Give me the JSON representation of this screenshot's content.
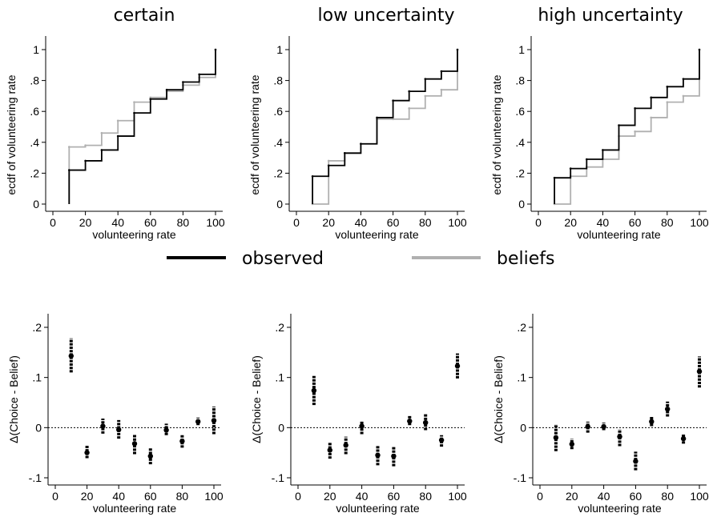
{
  "legend": {
    "items": [
      {
        "label": "observed",
        "color": "#000000"
      },
      {
        "label": "beliefs",
        "color": "#b0b0b0"
      }
    ]
  },
  "chart_data": [
    {
      "type": "line",
      "title": "certain",
      "xlabel": "volunteering rate",
      "ylabel": "ecdf of volunteering rate",
      "xticks": [
        "0",
        "20",
        "40",
        "60",
        "80",
        "100"
      ],
      "yticks": [
        "0",
        ".2",
        ".4",
        ".6",
        ".8",
        "1"
      ],
      "xlim": [
        0,
        100
      ],
      "ylim": [
        0,
        1
      ],
      "step": true,
      "x": [
        10,
        20,
        30,
        40,
        50,
        60,
        70,
        80,
        90,
        100
      ],
      "series": [
        {
          "name": "observed",
          "values": [
            0.22,
            0.28,
            0.35,
            0.44,
            0.59,
            0.68,
            0.74,
            0.79,
            0.84,
            1.0
          ]
        },
        {
          "name": "beliefs",
          "values": [
            0.37,
            0.38,
            0.46,
            0.54,
            0.66,
            0.69,
            0.73,
            0.77,
            0.82,
            1.0
          ]
        }
      ]
    },
    {
      "type": "line",
      "title": "low uncertainty",
      "xlabel": "volunteering rate",
      "ylabel": "ecdf of volunteering rate",
      "xticks": [
        "0",
        "20",
        "40",
        "60",
        "80",
        "100"
      ],
      "yticks": [
        "0",
        ".2",
        ".4",
        ".6",
        ".8",
        "1"
      ],
      "xlim": [
        0,
        100
      ],
      "ylim": [
        0,
        1
      ],
      "step": true,
      "x": [
        10,
        20,
        30,
        40,
        50,
        60,
        70,
        80,
        90,
        100
      ],
      "series": [
        {
          "name": "observed",
          "values": [
            0.18,
            0.25,
            0.33,
            0.39,
            0.56,
            0.67,
            0.73,
            0.81,
            0.86,
            1.0
          ]
        },
        {
          "name": "beliefs",
          "values": [
            0.0,
            0.28,
            0.33,
            0.39,
            0.55,
            0.55,
            0.62,
            0.7,
            0.74,
            1.0
          ]
        }
      ]
    },
    {
      "type": "line",
      "title": "high uncertainty",
      "xlabel": "volunteering rate",
      "ylabel": "ecdf of volunteering rate",
      "xticks": [
        "0",
        "20",
        "40",
        "60",
        "80",
        "100"
      ],
      "yticks": [
        "0",
        ".2",
        ".4",
        ".6",
        ".8",
        "1"
      ],
      "xlim": [
        0,
        100
      ],
      "ylim": [
        0,
        1
      ],
      "step": true,
      "x": [
        10,
        20,
        30,
        40,
        50,
        60,
        70,
        80,
        90,
        100
      ],
      "series": [
        {
          "name": "observed",
          "values": [
            0.17,
            0.23,
            0.29,
            0.35,
            0.51,
            0.62,
            0.69,
            0.76,
            0.81,
            1.0
          ]
        },
        {
          "name": "beliefs",
          "values": [
            0.0,
            0.18,
            0.24,
            0.29,
            0.44,
            0.47,
            0.56,
            0.66,
            0.7,
            1.0
          ]
        }
      ]
    },
    {
      "type": "scatter",
      "xlabel": "volunteering rate",
      "ylabel": "Δ(Choice - Belief)",
      "xticks": [
        "0",
        "20",
        "40",
        "60",
        "80",
        "100"
      ],
      "yticks": [
        "-.1",
        "0",
        ".1",
        ".2"
      ],
      "xlim": [
        0,
        100
      ],
      "ylim": [
        -0.1,
        0.2
      ],
      "zero_line": true,
      "x": [
        10,
        20,
        30,
        40,
        50,
        60,
        70,
        80,
        90,
        100
      ],
      "series": [
        {
          "name": "point",
          "values": [
            0.143,
            -0.05,
            0.003,
            -0.004,
            -0.032,
            -0.057,
            -0.005,
            -0.027,
            0.012,
            0.014
          ]
        },
        {
          "name": "low",
          "values": [
            0.11,
            -0.061,
            -0.012,
            -0.022,
            -0.053,
            -0.073,
            -0.015,
            -0.04,
            0.005,
            -0.013
          ]
        },
        {
          "name": "high",
          "values": [
            0.178,
            -0.035,
            0.018,
            0.015,
            -0.013,
            -0.04,
            0.008,
            -0.015,
            0.02,
            0.042
          ]
        }
      ]
    },
    {
      "type": "scatter",
      "xlabel": "volunteering rate",
      "ylabel": "Δ(Choice - Belief)",
      "xticks": [
        "0",
        "20",
        "40",
        "60",
        "80",
        "100"
      ],
      "yticks": [
        "-.1",
        "0",
        ".1",
        ".2"
      ],
      "xlim": [
        0,
        100
      ],
      "ylim": [
        -0.1,
        0.2
      ],
      "zero_line": true,
      "x": [
        10,
        20,
        30,
        40,
        50,
        60,
        70,
        80,
        90,
        100
      ],
      "series": [
        {
          "name": "point",
          "values": [
            0.074,
            -0.045,
            -0.035,
            0.003,
            -0.055,
            -0.057,
            0.013,
            0.01,
            -0.025,
            0.123
          ]
        },
        {
          "name": "low",
          "values": [
            0.045,
            -0.062,
            -0.053,
            -0.013,
            -0.075,
            -0.077,
            0.005,
            -0.005,
            -0.038,
            0.098
          ]
        },
        {
          "name": "high",
          "values": [
            0.103,
            -0.03,
            -0.018,
            0.012,
            -0.035,
            -0.037,
            0.023,
            0.027,
            -0.015,
            0.148
          ]
        }
      ]
    },
    {
      "type": "scatter",
      "xlabel": "volunteering rate",
      "ylabel": "Δ(Choice - Belief)",
      "xticks": [
        "0",
        "20",
        "40",
        "60",
        "80",
        "100"
      ],
      "yticks": [
        "-.1",
        "0",
        ".1",
        ".2"
      ],
      "xlim": [
        0,
        100
      ],
      "ylim": [
        -0.1,
        0.2
      ],
      "zero_line": true,
      "x": [
        10,
        20,
        30,
        40,
        50,
        60,
        70,
        80,
        90,
        100
      ],
      "series": [
        {
          "name": "point",
          "values": [
            -0.02,
            -0.033,
            0.002,
            0.002,
            -0.018,
            -0.067,
            0.012,
            0.037,
            -0.022,
            0.112
          ]
        },
        {
          "name": "low",
          "values": [
            -0.047,
            -0.043,
            -0.01,
            -0.005,
            -0.037,
            -0.085,
            0.003,
            0.022,
            -0.032,
            0.08
          ]
        },
        {
          "name": "high",
          "values": [
            0.007,
            -0.022,
            0.012,
            0.01,
            -0.003,
            -0.048,
            0.023,
            0.052,
            -0.012,
            0.142
          ]
        }
      ]
    }
  ]
}
